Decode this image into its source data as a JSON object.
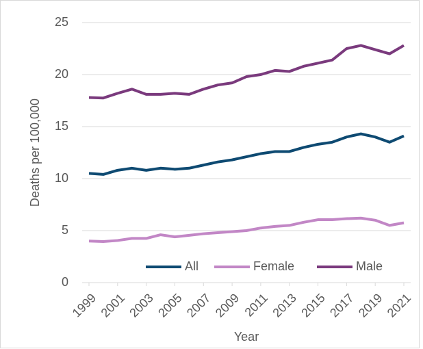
{
  "chart_data": {
    "type": "line",
    "x": [
      1999,
      2000,
      2001,
      2002,
      2003,
      2004,
      2005,
      2006,
      2007,
      2008,
      2009,
      2010,
      2011,
      2012,
      2013,
      2014,
      2015,
      2016,
      2017,
      2018,
      2019,
      2020,
      2021
    ],
    "xlim": [
      1999,
      2021
    ],
    "xticks": [
      1999,
      2001,
      2003,
      2005,
      2007,
      2009,
      2011,
      2013,
      2015,
      2017,
      2019,
      2021
    ],
    "ylim": [
      0,
      25
    ],
    "yticks": [
      0,
      5,
      10,
      15,
      20,
      25
    ],
    "grid": true,
    "xlabel": "Year",
    "ylabel": "Deaths per 100,000",
    "legend": "bottom",
    "series": [
      {
        "name": "All",
        "color": "#0e4a72",
        "values": [
          10.5,
          10.4,
          10.8,
          11.0,
          10.8,
          11.0,
          10.9,
          11.0,
          11.3,
          11.6,
          11.8,
          12.1,
          12.4,
          12.6,
          12.6,
          13.0,
          13.3,
          13.5,
          14.0,
          14.3,
          14.0,
          13.5,
          14.1
        ]
      },
      {
        "name": "Female",
        "color": "#c287c6",
        "values": [
          4.0,
          3.95,
          4.05,
          4.25,
          4.25,
          4.6,
          4.4,
          4.55,
          4.7,
          4.8,
          4.9,
          5.0,
          5.25,
          5.4,
          5.5,
          5.8,
          6.05,
          6.05,
          6.15,
          6.2,
          6.0,
          5.5,
          5.75
        ]
      },
      {
        "name": "Male",
        "color": "#7a3a7d",
        "values": [
          17.8,
          17.75,
          18.2,
          18.6,
          18.1,
          18.1,
          18.2,
          18.1,
          18.6,
          19.0,
          19.2,
          19.8,
          20.0,
          20.4,
          20.3,
          20.8,
          21.1,
          21.4,
          22.5,
          22.8,
          22.4,
          22.0,
          22.8
        ]
      }
    ]
  }
}
